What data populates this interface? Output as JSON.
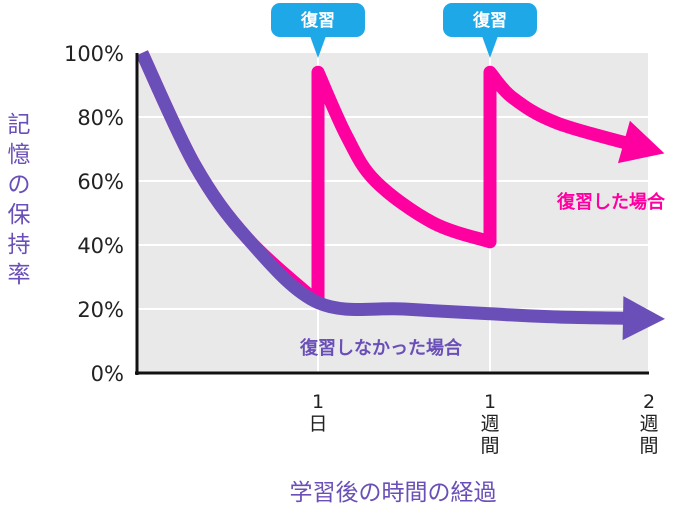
{
  "chart_data": {
    "type": "line",
    "ylabel": "記憶の保持率",
    "xlabel": "学習後の時間の経過",
    "y_ticks": [
      "0%",
      "20%",
      "40%",
      "60%",
      "80%",
      "100%"
    ],
    "ylim": [
      0,
      100
    ],
    "x_ticks": [
      {
        "x": 1,
        "label": [
          "1",
          "日"
        ]
      },
      {
        "x": 7,
        "label": [
          "1",
          "週",
          "間"
        ]
      },
      {
        "x": 14,
        "label": [
          "2",
          "週",
          "間"
        ]
      }
    ],
    "xlim": [
      0,
      14
    ],
    "grid": true,
    "series": [
      {
        "name": "復習しなかった場合",
        "color": "#6A4FB8",
        "points": [
          [
            0,
            100
          ],
          [
            0.3,
            65
          ],
          [
            0.6,
            42
          ],
          [
            1,
            22
          ],
          [
            4,
            20
          ],
          [
            7,
            18.5
          ],
          [
            10,
            17.5
          ],
          [
            14,
            17
          ]
        ]
      },
      {
        "name": "復習した場合",
        "color": "#FF00A0",
        "points": [
          [
            0,
            100
          ],
          [
            0.3,
            65
          ],
          [
            0.6,
            42
          ],
          [
            1,
            22
          ],
          [
            1,
            94
          ],
          [
            2,
            74
          ],
          [
            3,
            60
          ],
          [
            5,
            47
          ],
          [
            7,
            41
          ],
          [
            7,
            94
          ],
          [
            8,
            86
          ],
          [
            10,
            78
          ],
          [
            14,
            70
          ]
        ]
      }
    ],
    "annotations": [
      {
        "text": "復習",
        "x": 1,
        "y": 94
      },
      {
        "text": "復習",
        "x": 7,
        "y": 94
      }
    ]
  }
}
